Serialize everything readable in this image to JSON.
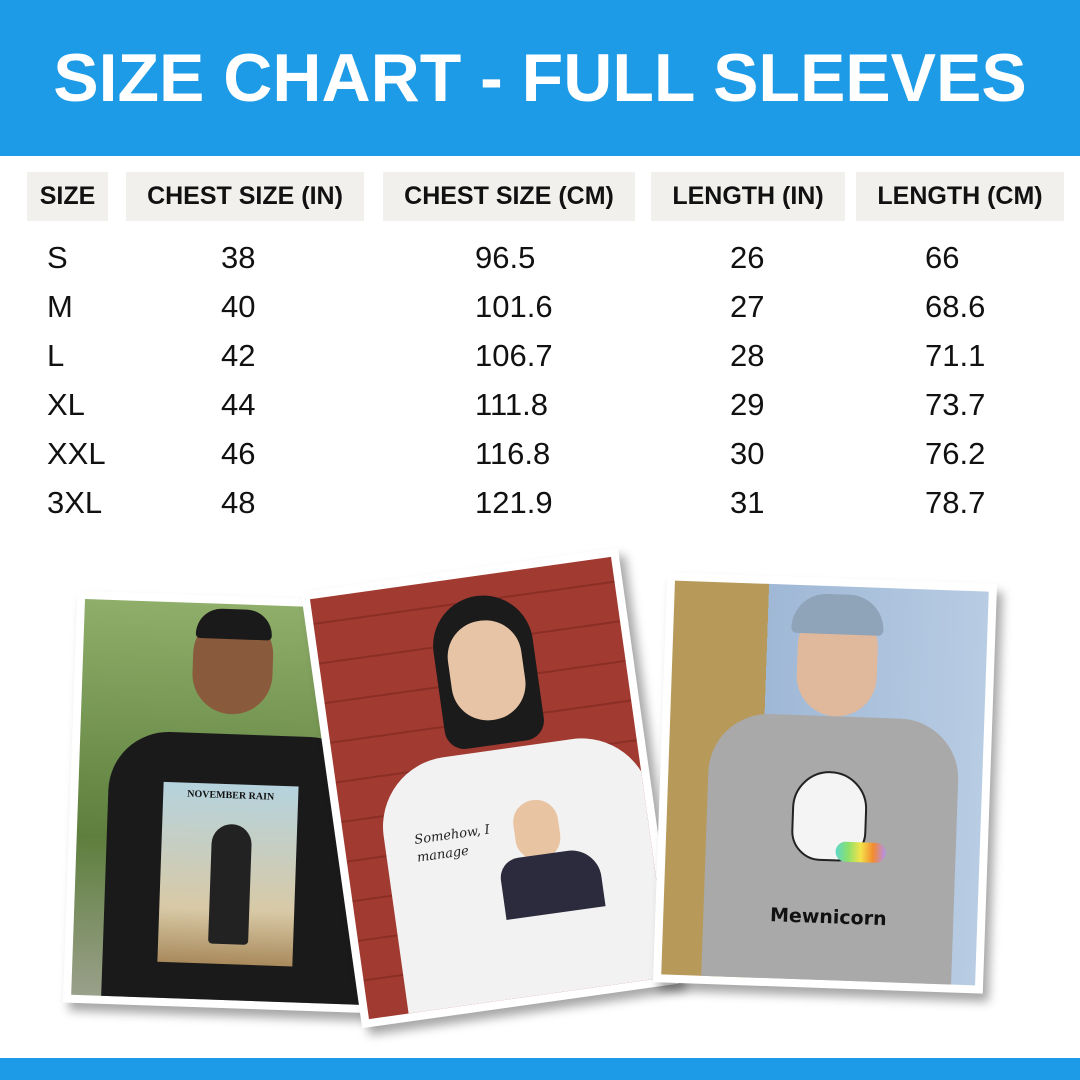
{
  "header": {
    "title": "SIZE CHART - FULL SLEEVES"
  },
  "table": {
    "columns": [
      "SIZE",
      "CHEST SIZE (IN)",
      "CHEST SIZE (CM)",
      "LENGTH (IN)",
      "LENGTH (CM)"
    ],
    "rows": [
      [
        "S",
        "38",
        "96.5",
        "26",
        "66"
      ],
      [
        "M",
        "40",
        "101.6",
        "27",
        "68.6"
      ],
      [
        "L",
        "42",
        "106.7",
        "28",
        "71.1"
      ],
      [
        "XL",
        "44",
        "111.8",
        "29",
        "73.7"
      ],
      [
        "XXL",
        "46",
        "116.8",
        "30",
        "76.2"
      ],
      [
        "3XL",
        "48",
        "121.9",
        "31",
        "78.7"
      ]
    ]
  },
  "photos": [
    {
      "print_text": "NOVEMBER RAIN",
      "shirt_color": "#1a1a1a"
    },
    {
      "print_text": "Somehow, I manage",
      "shirt_color": "#f2f2f2"
    },
    {
      "print_text": "Mewnicorn",
      "shirt_color": "#a9a9a9"
    }
  ],
  "colors": {
    "accent": "#1e9be6",
    "header_cell": "#f1f0ec"
  }
}
